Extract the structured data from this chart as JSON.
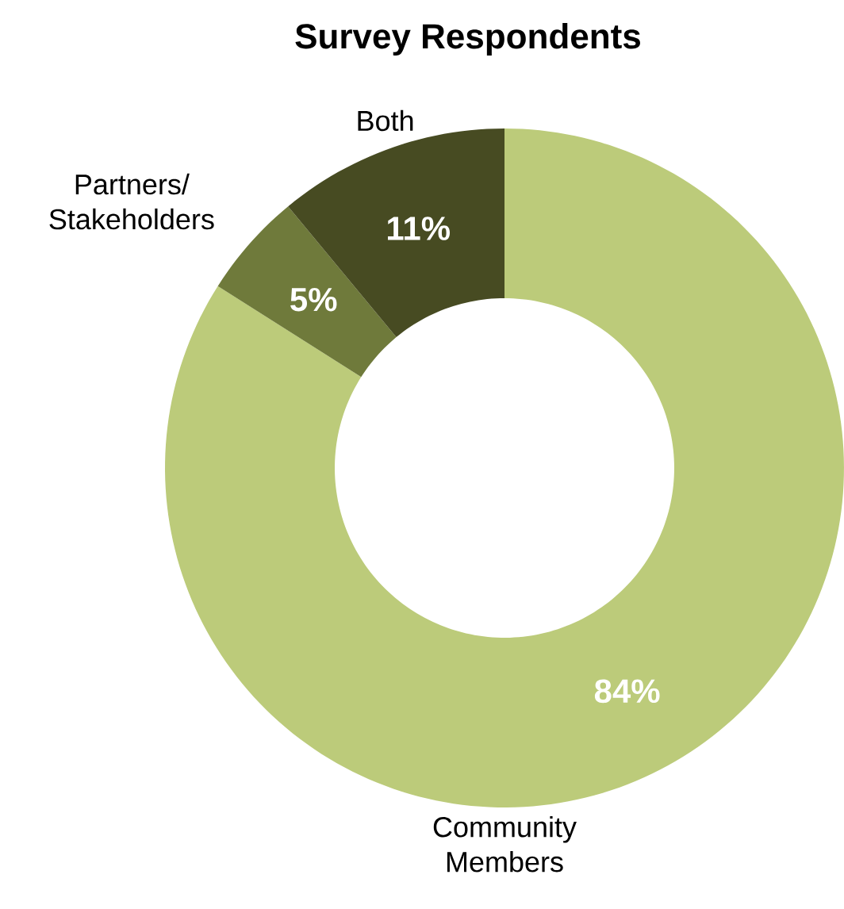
{
  "chart_data": {
    "type": "donut",
    "title": "Survey Respondents",
    "categories": [
      "Community Members",
      "Partners/ Stakeholders",
      "Both"
    ],
    "values": [
      84,
      5,
      11
    ],
    "value_labels": [
      "84%",
      "5%",
      "11%"
    ],
    "colors": [
      "#bccb7a",
      "#6f7a3b",
      "#474b22"
    ],
    "legend": false
  }
}
